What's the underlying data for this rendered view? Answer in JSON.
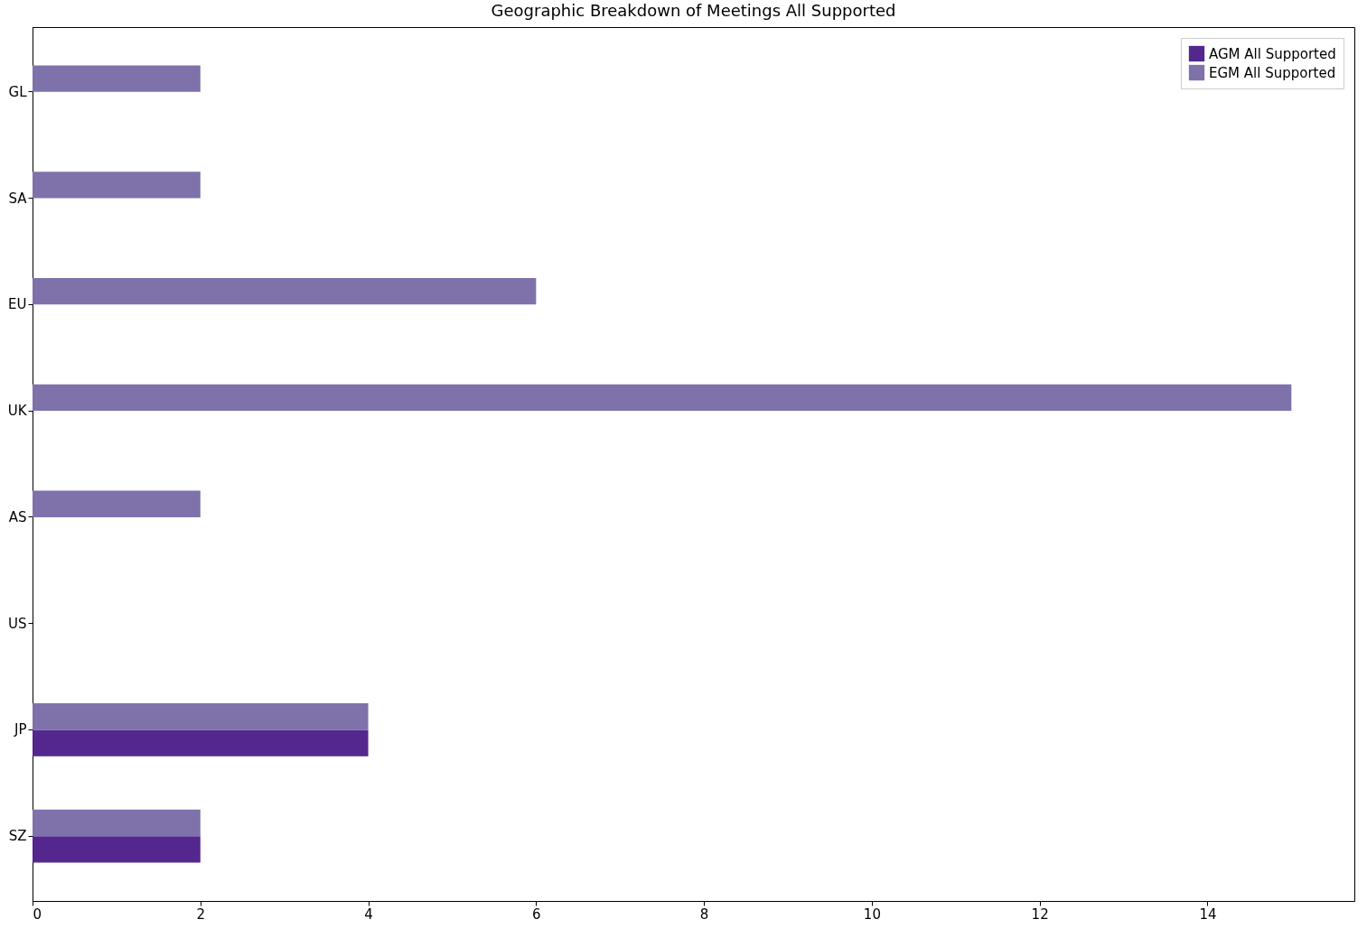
{
  "chart_data": {
    "type": "bar",
    "orientation": "horizontal",
    "title": "Geographic Breakdown of Meetings All Supported",
    "categories": [
      "GL",
      "SA",
      "EU",
      "UK",
      "AS",
      "US",
      "JP",
      "SZ"
    ],
    "series": [
      {
        "name": "AGM All Supported",
        "color": "#54278f",
        "values": [
          0,
          0,
          0,
          0,
          0,
          0,
          4,
          2
        ]
      },
      {
        "name": "EGM All Supported",
        "color": "#7f72ab",
        "values": [
          2,
          2,
          6,
          15,
          2,
          0,
          4,
          2
        ]
      }
    ],
    "xlim": [
      0,
      15.75
    ],
    "xticks": [
      0,
      2,
      4,
      6,
      8,
      10,
      12,
      14
    ],
    "grid": false,
    "legend": "top right"
  }
}
